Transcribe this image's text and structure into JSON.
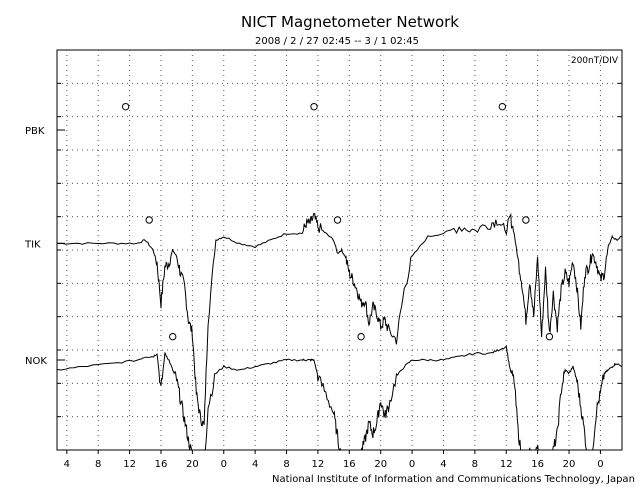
{
  "chart_data": {
    "type": "line",
    "title": "NICT Magnetometer Network",
    "subtitle": "2008 / 2 / 27   02:45 --  3 / 1   02:45",
    "scale_label": "200nT/DIV",
    "footer": "National Institute of Information and Communications Technology, Japan",
    "x_tick_labels": [
      "4",
      "8",
      "12",
      "16",
      "20",
      "0",
      "4",
      "8",
      "12",
      "16",
      "20",
      "0",
      "4",
      "8",
      "12",
      "16",
      "20",
      "0"
    ],
    "x_hours": [
      4,
      8,
      12,
      16,
      20,
      24,
      28,
      32,
      36,
      40,
      44,
      48,
      52,
      56,
      60,
      64,
      68,
      72
    ],
    "xlim": [
      2.75,
      74.75
    ],
    "y_div_range": [
      0,
      12
    ],
    "grid": true,
    "stations": [
      {
        "name": "PBK",
        "baseline_div": 9.6,
        "markers_hours": [
          11.5,
          35.5,
          59.5
        ],
        "marker_offset_div": 0.7
      },
      {
        "name": "TIK",
        "baseline_div": 6.2,
        "markers_hours": [
          14.5,
          38.5,
          62.5
        ],
        "marker_offset_div": 0.7
      },
      {
        "name": "NOK",
        "baseline_div": 2.7,
        "markers_hours": [
          17.5,
          41.5,
          65.5
        ],
        "marker_offset_div": 0.7
      }
    ],
    "series": [
      {
        "name": "TIK",
        "x": [
          2.75,
          6,
          10,
          13,
          14,
          15,
          15.5,
          16,
          16.5,
          17,
          17.5,
          18,
          18.5,
          19,
          19.5,
          20,
          20.5,
          21,
          21.5,
          22,
          23,
          24,
          26,
          28,
          30,
          32,
          34,
          34.5,
          35,
          35.5,
          36,
          37,
          38,
          38.5,
          39,
          39.5,
          40,
          40.5,
          41,
          41.5,
          42,
          42.5,
          43,
          43.5,
          44,
          44.5,
          45,
          46,
          47,
          48,
          50,
          52,
          54,
          56,
          58,
          59,
          60,
          60.5,
          61,
          61.5,
          62,
          62.5,
          63,
          63.5,
          64,
          64.5,
          65,
          65.5,
          66,
          66.5,
          67,
          67.5,
          68,
          68.5,
          69,
          69.5,
          70,
          70.5,
          71,
          71.5,
          72,
          72.5,
          73,
          73.5,
          74,
          74.75
        ],
        "y": [
          0,
          0,
          0,
          0,
          0.1,
          -0.2,
          -0.6,
          -1.8,
          -0.7,
          -0.6,
          -0.2,
          -0.4,
          -0.9,
          -1.3,
          -2.3,
          -2.7,
          -4.5,
          -5.2,
          -5.5,
          -2.3,
          0.1,
          0.2,
          0,
          -0.1,
          0.1,
          0.3,
          0.3,
          0.6,
          0.6,
          0.8,
          0.5,
          0.3,
          0.1,
          -0.3,
          -0.2,
          -0.4,
          -0.9,
          -1.1,
          -1.4,
          -1.8,
          -1.7,
          -2.4,
          -1.9,
          -2.1,
          -2.5,
          -2.3,
          -2.6,
          -2.9,
          -1.4,
          -0.4,
          0.2,
          0.3,
          0.5,
          0.4,
          0.6,
          0.7,
          0.3,
          0.8,
          0.3,
          -0.5,
          -1.2,
          -2.3,
          -1.1,
          -2.2,
          -0.4,
          -2.8,
          -0.8,
          -2.7,
          -1.5,
          -2.5,
          -1.4,
          -0.9,
          -1.2,
          -0.5,
          -1.3,
          -2.5,
          -0.9,
          -0.7,
          -0.3,
          -0.6,
          -1.1,
          -0.9,
          -0.1,
          0.2,
          0.1,
          0.2
        ]
      },
      {
        "name": "NOK",
        "x": [
          2.75,
          6,
          10,
          13,
          14,
          15,
          15.5,
          16,
          16.5,
          17,
          17.5,
          18,
          18.5,
          19,
          19.5,
          20,
          20.5,
          21,
          21.5,
          22,
          23,
          24,
          26,
          28,
          30,
          32,
          34,
          34.5,
          35,
          35.5,
          36,
          37,
          38,
          38.5,
          39,
          39.5,
          40,
          40.5,
          41,
          41.5,
          42,
          42.5,
          43,
          43.5,
          44,
          44.5,
          45,
          46,
          47,
          48,
          50,
          52,
          54,
          56,
          58,
          59,
          60,
          60.5,
          61,
          61.5,
          62,
          62.5,
          63,
          63.5,
          64,
          64.5,
          65,
          65.5,
          66,
          66.5,
          67,
          67.5,
          68,
          68.5,
          69,
          69.5,
          70,
          70.5,
          71,
          71.5,
          72,
          72.5,
          73,
          73.5,
          74,
          74.75
        ],
        "y": [
          -0.3,
          -0.2,
          -0.1,
          0,
          0.1,
          0.1,
          0.2,
          -0.9,
          0.2,
          0,
          -0.3,
          -0.6,
          -1.2,
          -1.8,
          -2.4,
          -2.9,
          -3.3,
          -3.3,
          -3.2,
          -1.4,
          -0.4,
          -0.2,
          -0.3,
          -0.2,
          -0.1,
          0,
          0,
          0,
          0,
          0,
          -0.5,
          -1,
          -1.6,
          -2.3,
          -3,
          -3.3,
          -3.3,
          -3.3,
          -3.3,
          -2.8,
          -2.4,
          -1.9,
          -2.2,
          -1.9,
          -1.2,
          -1.7,
          -1.4,
          -0.5,
          -0.2,
          0,
          0,
          0,
          0.1,
          0.2,
          0.2,
          0.3,
          0.4,
          -0.3,
          -0.6,
          -2.1,
          -3,
          -3.3,
          -2.8,
          -3.3,
          -2.5,
          -3.3,
          -2.9,
          -3.3,
          -2.7,
          -2.2,
          -0.9,
          -0.3,
          -0.4,
          -0.2,
          -0.6,
          -1.4,
          -2.2,
          -3.3,
          -2.7,
          -1.5,
          -1,
          -0.4,
          -0.3,
          -0.2,
          -0.1,
          -0.2
        ]
      }
    ]
  }
}
